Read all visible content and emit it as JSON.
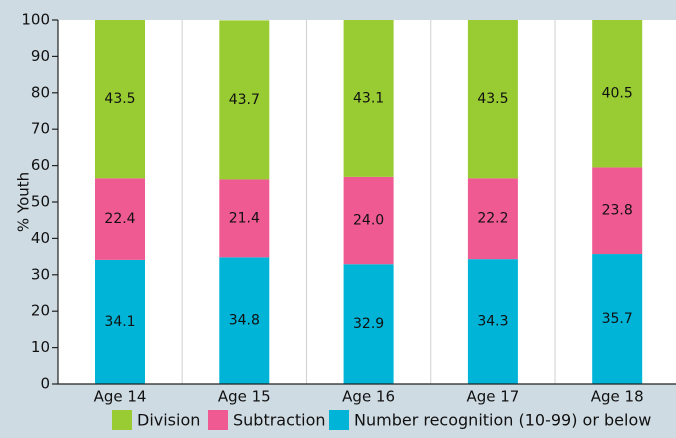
{
  "chart_data": {
    "type": "bar",
    "stacked": true,
    "categories": [
      "Age 14",
      "Age 15",
      "Age 16",
      "Age 17",
      "Age 18"
    ],
    "series": [
      {
        "name": "Number recognition (10-99) or below",
        "values": [
          34.1,
          34.8,
          32.9,
          34.3,
          35.7
        ],
        "color": "#00b4d8"
      },
      {
        "name": "Subtraction",
        "values": [
          22.4,
          21.4,
          24.0,
          22.2,
          23.8
        ],
        "color": "#f05a93"
      },
      {
        "name": "Division",
        "values": [
          43.5,
          43.7,
          43.1,
          43.5,
          40.5
        ],
        "color": "#99cc33"
      }
    ],
    "value_labels": [
      [
        "34.1",
        "34.8",
        "32.9",
        "34.3",
        "35.7"
      ],
      [
        "22.4",
        "21.4",
        "24.0",
        "22.2",
        "23.8"
      ],
      [
        "43.5",
        "43.7",
        "43.1",
        "43.5",
        "40.5"
      ]
    ],
    "xlabel": "",
    "ylabel": "% Youth",
    "ylim": [
      0,
      100
    ],
    "yticks": [
      "0",
      "10",
      "20",
      "30",
      "40",
      "50",
      "60",
      "70",
      "80",
      "90",
      "100"
    ],
    "grid": "vertical",
    "legend_position": "bottom",
    "legend_order": [
      "Division",
      "Subtraction",
      "Number recognition (10-99) or below"
    ]
  }
}
